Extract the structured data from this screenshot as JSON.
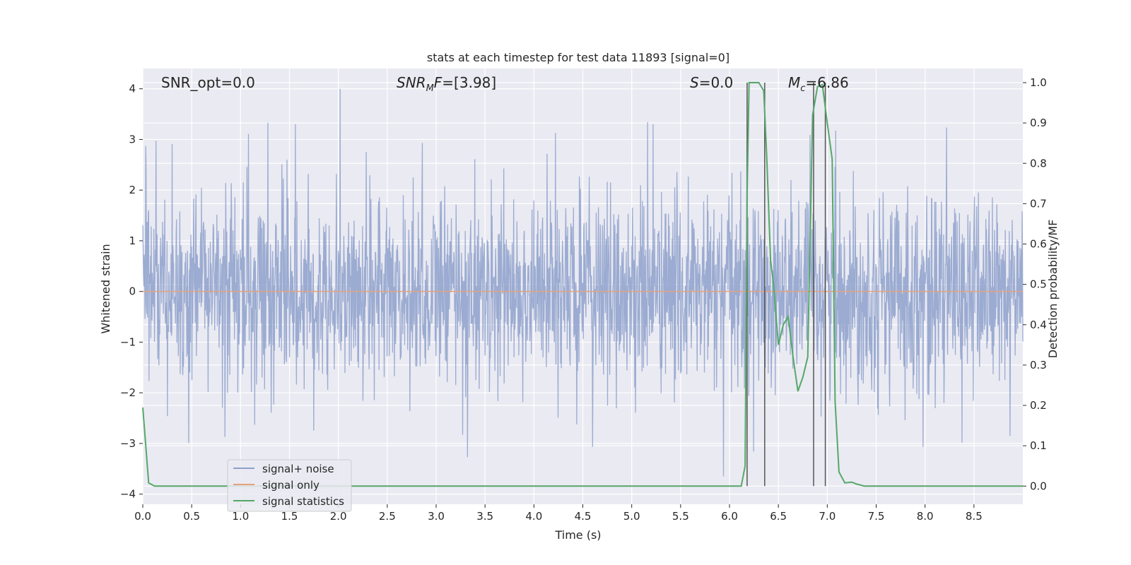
{
  "chart_data": {
    "type": "line",
    "title": "stats at each timestep for test data 11893 [signal=0]",
    "xlabel": "Time (s)",
    "ylabel_left": "Whitened strain",
    "ylabel_right": "Detection probability/MF",
    "xlim": [
      0,
      9
    ],
    "ylim_left": [
      -4.2,
      4.4
    ],
    "ylim_right": [
      -0.045,
      1.035
    ],
    "x_ticks": [
      "0.0",
      "0.5",
      "1.0",
      "1.5",
      "2.0",
      "2.5",
      "3.0",
      "3.5",
      "4.0",
      "4.5",
      "5.0",
      "5.5",
      "6.0",
      "6.5",
      "7.0",
      "7.5",
      "8.0",
      "8.5"
    ],
    "x_tick_values": [
      0,
      0.5,
      1,
      1.5,
      2,
      2.5,
      3,
      3.5,
      4,
      4.5,
      5,
      5.5,
      6,
      6.5,
      7,
      7.5,
      8,
      8.5
    ],
    "y_left_ticks": [
      "−4",
      "−3",
      "−2",
      "−1",
      "0",
      "1",
      "2",
      "3",
      "4"
    ],
    "y_left_tick_values": [
      -4,
      -3,
      -2,
      -1,
      0,
      1,
      2,
      3,
      4
    ],
    "y_right_ticks": [
      "0.0",
      "0.1",
      "0.2",
      "0.3",
      "0.4",
      "0.5",
      "0.6",
      "0.7",
      "0.8",
      "0.9",
      "1.0"
    ],
    "y_right_tick_values": [
      0,
      0.1,
      0.2,
      0.3,
      0.4,
      0.5,
      0.6,
      0.7,
      0.8,
      0.9,
      1.0
    ],
    "grid": true,
    "legend_position": "lower-left",
    "annotations": [
      {
        "text": "SNR_opt=0.0"
      },
      {
        "text": "SNR_MF=[3.98]"
      },
      {
        "text": "S=0.0"
      },
      {
        "text": "M_c=6.86"
      }
    ],
    "series": [
      {
        "name": "signal+ noise",
        "axis": "left",
        "color": "#8da0cb",
        "description": "whitened noise strain, roughly Gaussian with sigma ~1, spanning -4 to 4",
        "x_range": [
          0,
          9
        ],
        "peaks": [
          {
            "x": 0.03,
            "y": 2.87
          },
          {
            "x": 0.3,
            "y": 2.91
          },
          {
            "x": 1.08,
            "y": 3.11
          },
          {
            "x": 1.28,
            "y": 3.33
          },
          {
            "x": 1.56,
            "y": 3.3
          },
          {
            "x": 2.02,
            "y": 4.0
          },
          {
            "x": 2.86,
            "y": 2.93
          },
          {
            "x": 4.22,
            "y": 3.13
          },
          {
            "x": 5.22,
            "y": 3.3
          },
          {
            "x": 6.18,
            "y": 2.96
          },
          {
            "x": 7.08,
            "y": 2.46
          }
        ],
        "troughs": [
          {
            "x": 0.47,
            "y": -2.99
          },
          {
            "x": 3.32,
            "y": -3.27
          },
          {
            "x": 5.94,
            "y": -3.65
          },
          {
            "x": 7.98,
            "y": -3.07
          },
          {
            "x": 8.87,
            "y": -2.85
          }
        ]
      },
      {
        "name": "signal only",
        "axis": "left",
        "color": "#e5a27d",
        "x": [
          0,
          9
        ],
        "y": [
          0,
          0
        ]
      },
      {
        "name": "signal statistics",
        "axis": "right",
        "color": "#55a868",
        "x": [
          0,
          0.06,
          0.12,
          0.5,
          1,
          2,
          3,
          4,
          5,
          6.12,
          6.16,
          6.18,
          6.2,
          6.25,
          6.3,
          6.35,
          6.38,
          6.42,
          6.45,
          6.5,
          6.55,
          6.6,
          6.62,
          6.65,
          6.7,
          6.75,
          6.8,
          6.85,
          6.9,
          6.95,
          7.0,
          7.05,
          7.08,
          7.12,
          7.18,
          7.25,
          7.3,
          7.38,
          7.5,
          8,
          8.5,
          9
        ],
        "y": [
          0.195,
          0.008,
          0.0,
          0.0,
          0.0,
          0.0,
          0.0,
          0.0,
          0.0,
          0.0,
          0.05,
          0.72,
          1.0,
          1.0,
          1.0,
          0.98,
          0.82,
          0.56,
          0.5,
          0.35,
          0.4,
          0.42,
          0.38,
          0.32,
          0.235,
          0.27,
          0.32,
          0.92,
          0.99,
          0.995,
          0.9,
          0.81,
          0.21,
          0.035,
          0.008,
          0.01,
          0.005,
          0.0,
          0.0,
          0.0,
          0.0,
          0.0
        ]
      }
    ],
    "vertical_lines": {
      "color": "#555555",
      "x": [
        6.18,
        6.36,
        6.86,
        6.98
      ],
      "y_range_right": [
        0,
        1.0
      ]
    }
  },
  "legend": [
    {
      "label": "signal+ noise",
      "color": "#8da0cb"
    },
    {
      "label": "signal only",
      "color": "#e5a27d"
    },
    {
      "label": "signal statistics",
      "color": "#55a868"
    }
  ]
}
